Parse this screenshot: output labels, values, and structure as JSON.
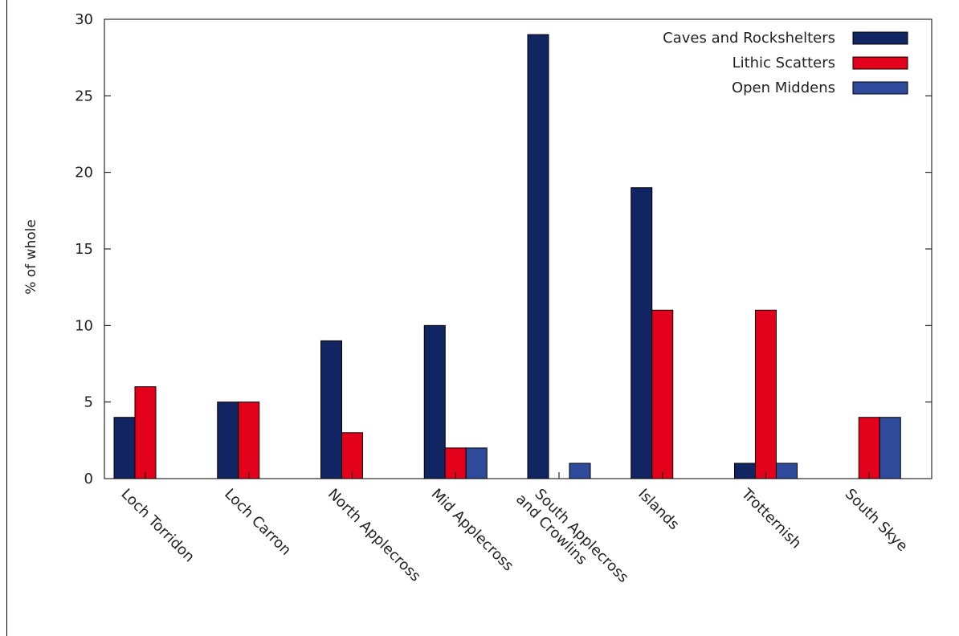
{
  "chart_data": {
    "type": "bar",
    "ylabel": "% of whole",
    "ylim": [
      0,
      30
    ],
    "yticks": [
      0,
      5,
      10,
      15,
      20,
      25,
      30
    ],
    "grid": false,
    "legend_position": "top-right",
    "categories": [
      "Loch Torridon",
      "Loch Carron",
      "North Applecross",
      "Mid Applecross",
      "South Applecross\nand Crowlins",
      "Islands",
      "Trotternish",
      "South Skye"
    ],
    "series": [
      {
        "name": "Caves and Rockshelters",
        "color": "#122563",
        "values": [
          4,
          5,
          9,
          10,
          29,
          19,
          1,
          0
        ]
      },
      {
        "name": "Lithic Scatters",
        "color": "#e2001a",
        "values": [
          6,
          5,
          3,
          2,
          0,
          11,
          11,
          4
        ]
      },
      {
        "name": "Open Middens",
        "color": "#2e4a9b",
        "values": [
          0,
          0,
          0,
          2,
          1,
          0,
          1,
          4
        ]
      }
    ]
  }
}
